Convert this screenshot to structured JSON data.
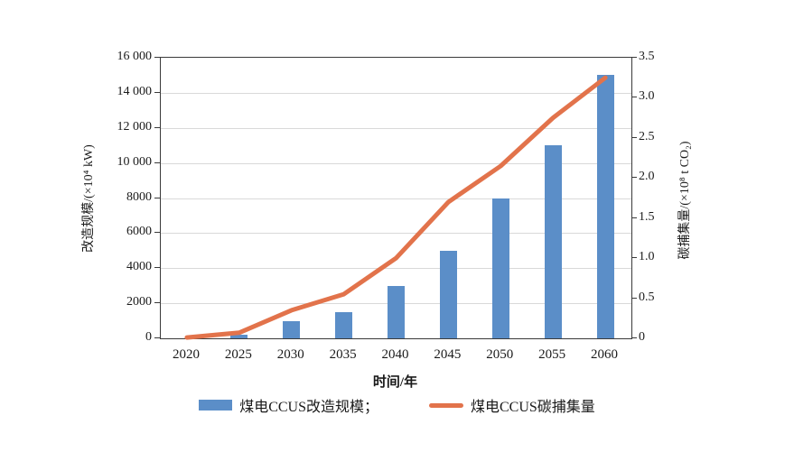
{
  "chart_data": {
    "type": "bar+line combo",
    "categories": [
      "2020",
      "2025",
      "2030",
      "2035",
      "2040",
      "2045",
      "2050",
      "2055",
      "2060"
    ],
    "series": [
      {
        "name": "煤电CCUS改造规模",
        "type": "bar",
        "axis": "left",
        "color": "#5b8ec8",
        "values": [
          0,
          200,
          1000,
          1500,
          3000,
          5000,
          8000,
          11000,
          15000
        ]
      },
      {
        "name": "煤电CCUS碳捕集量",
        "type": "line",
        "axis": "right",
        "color": "#e2734b",
        "values": [
          0.01,
          0.07,
          0.35,
          0.55,
          1.0,
          1.7,
          2.15,
          2.75,
          3.25
        ]
      }
    ],
    "title": "",
    "xlabel": "时间/年",
    "ylabel_left": "改造规模/(×10⁴ kW)",
    "ylabel_right": "碳捕集量/(×10⁸ t CO₂)",
    "ylim_left": [
      0,
      16000
    ],
    "ylim_right": [
      0,
      3.5
    ],
    "y_left_tick_labels": [
      "0",
      "2000",
      "4000",
      "6000",
      "8000",
      "10 000",
      "12 000",
      "14 000",
      "16 000"
    ],
    "y_right_tick_labels": [
      "0",
      "0.5",
      "1.0",
      "1.5",
      "2.0",
      "2.5",
      "3.0",
      "3.5"
    ],
    "grid": true,
    "legend_position": "bottom",
    "legend": [
      {
        "label": "煤电CCUS改造规模；",
        "swatch": "bar"
      },
      {
        "label": "煤电CCUS碳捕集量",
        "swatch": "line"
      }
    ]
  },
  "colors": {
    "bar": "#5b8ec8",
    "line": "#e2734b",
    "grid": "#d9d9d9",
    "axis": "#3a3a3a",
    "text": "#1a1a1a",
    "background": "#ffffff"
  }
}
